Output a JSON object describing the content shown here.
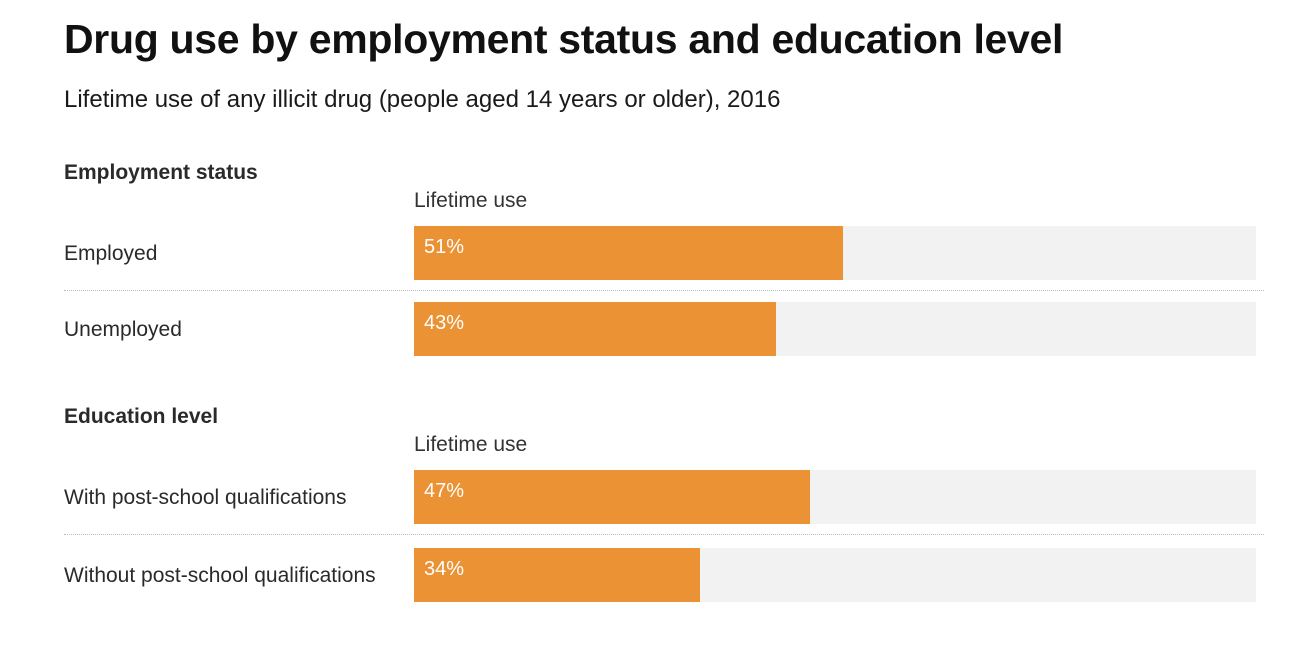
{
  "header": {
    "title": "Drug use by employment status and education level",
    "subtitle": "Lifetime use of any illicit drug (people aged 14 years or older), 2016"
  },
  "colors": {
    "bar": "#eb9234",
    "track": "#f2f2f2"
  },
  "chart_data": [
    {
      "type": "bar",
      "title": "Employment status",
      "column_label": "Lifetime use",
      "categories": [
        "Employed",
        "Unemployed"
      ],
      "values": [
        51,
        43
      ],
      "value_labels": [
        "51%",
        "43%"
      ],
      "xlim": [
        0,
        100
      ]
    },
    {
      "type": "bar",
      "title": "Education level",
      "column_label": "Lifetime use",
      "categories": [
        "With post-school qualifications",
        "Without post-school qualifications"
      ],
      "values": [
        47,
        34
      ],
      "value_labels": [
        "47%",
        "34%"
      ],
      "xlim": [
        0,
        100
      ]
    }
  ]
}
